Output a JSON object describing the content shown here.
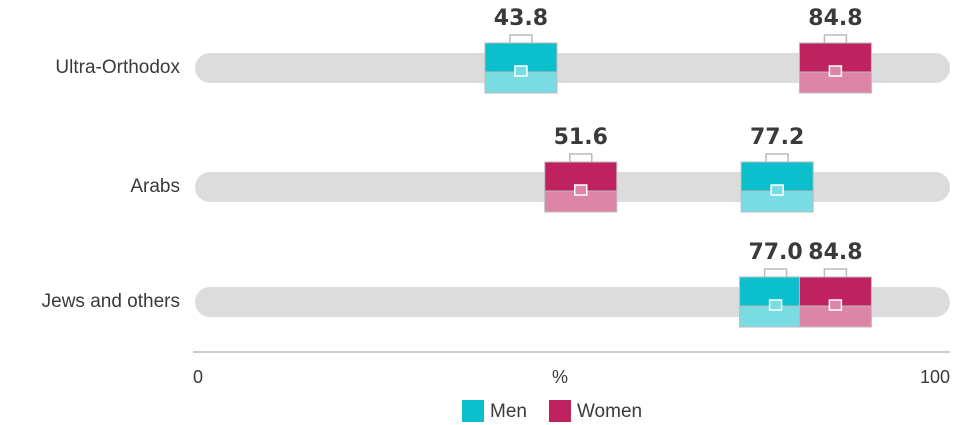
{
  "chart_data": {
    "type": "dot",
    "categories": [
      "Ultra-Orthodox",
      "Arabs",
      "Jews and others"
    ],
    "series": [
      {
        "name": "Men",
        "color": "#0bbfcc",
        "values": [
          43.8,
          77.2,
          77.0
        ],
        "value_labels": [
          "43.8",
          "77.2",
          "77.0"
        ]
      },
      {
        "name": "Women",
        "color": "#c0215f",
        "values": [
          84.8,
          51.6,
          84.8
        ],
        "value_labels": [
          "84.8",
          "51.6",
          "84.8"
        ]
      }
    ],
    "xlabel": "%",
    "xlim": [
      0,
      100
    ],
    "xticks": [
      0,
      100
    ]
  }
}
